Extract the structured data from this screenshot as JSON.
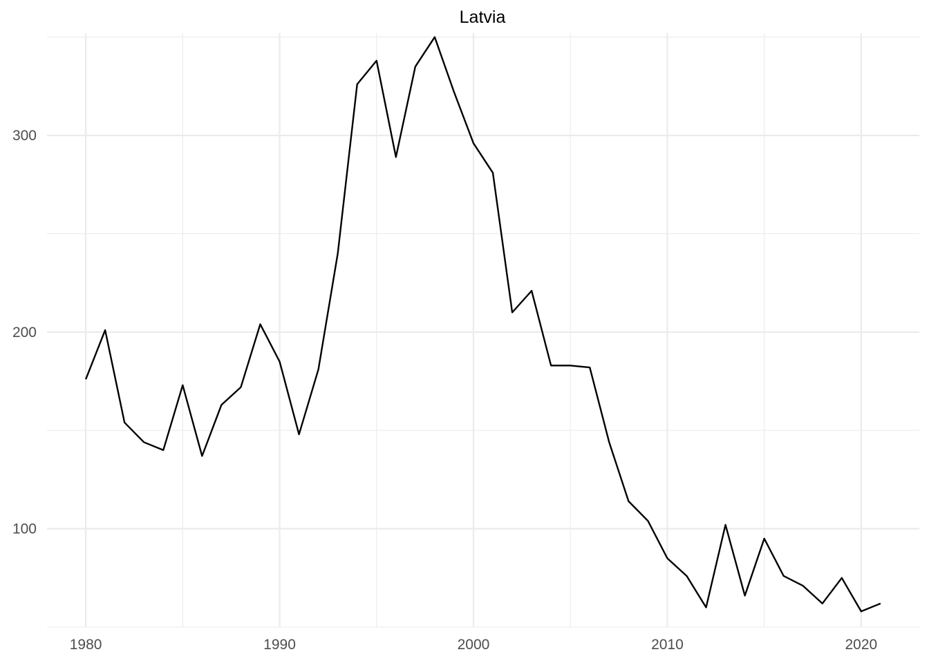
{
  "chart_data": {
    "type": "line",
    "title": "Latvia",
    "xlabel": "",
    "ylabel": "",
    "xlim": [
      1978,
      2023
    ],
    "ylim": [
      50,
      352
    ],
    "x_ticks": [
      1980,
      1990,
      2000,
      2010,
      2020
    ],
    "x_minor_ticks": [
      1985,
      1995,
      2005,
      2015
    ],
    "y_ticks": [
      100,
      200,
      300
    ],
    "y_minor_ticks": [
      50,
      150,
      250,
      350
    ],
    "grid": true,
    "legend": "none",
    "line_color": "#000000",
    "x": [
      1980,
      1981,
      1982,
      1983,
      1984,
      1985,
      1986,
      1987,
      1988,
      1989,
      1990,
      1991,
      1992,
      1993,
      1994,
      1995,
      1996,
      1997,
      1998,
      1999,
      2000,
      2001,
      2002,
      2003,
      2004,
      2005,
      2006,
      2007,
      2008,
      2009,
      2010,
      2011,
      2012,
      2013,
      2014,
      2015,
      2016,
      2017,
      2018,
      2019,
      2020,
      2021
    ],
    "values": [
      176,
      201,
      154,
      144,
      140,
      173,
      137,
      163,
      172,
      204,
      185,
      148,
      181,
      240,
      326,
      338,
      289,
      335,
      350,
      322,
      296,
      281,
      210,
      221,
      183,
      183,
      182,
      144,
      114,
      104,
      85,
      76,
      60,
      102,
      66,
      95,
      76,
      71,
      62,
      75,
      58,
      62
    ]
  }
}
